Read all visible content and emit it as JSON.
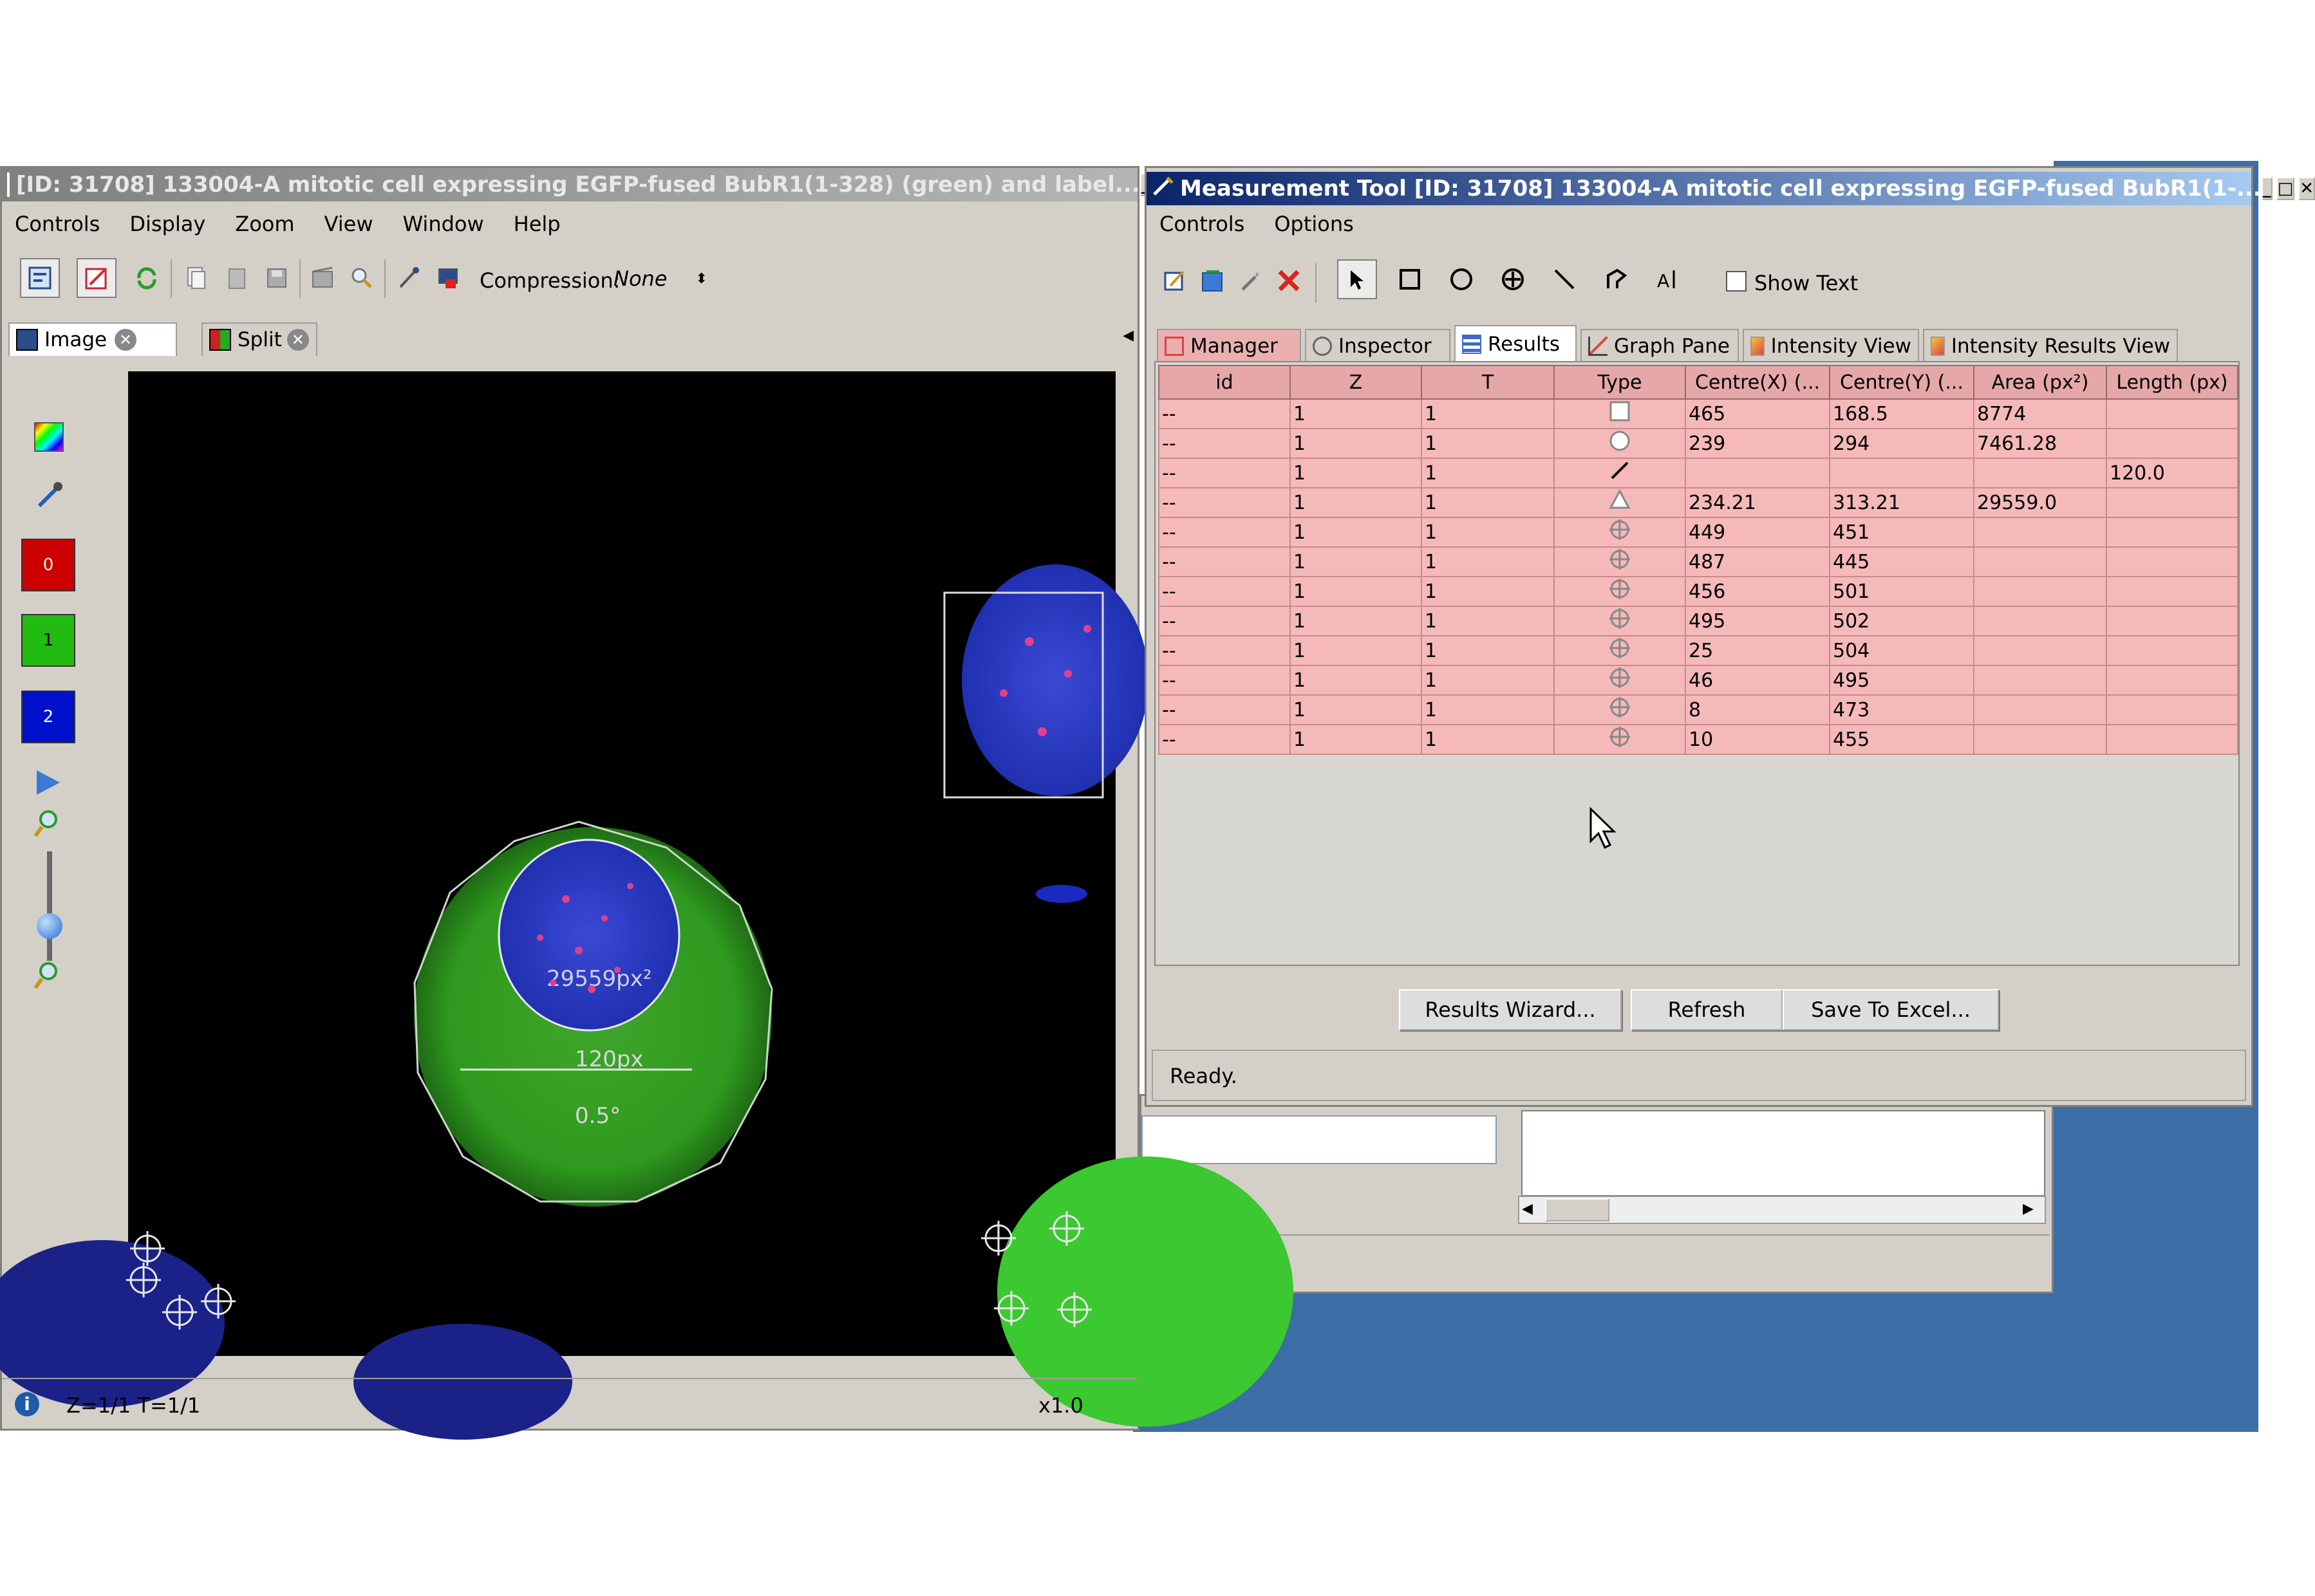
{
  "image_window": {
    "title": "[ID: 31708] 133004-A mitotic cell expressing EGFP-fused BubR1(1-328) (green) and label...",
    "menu": [
      "Controls",
      "Display",
      "Zoom",
      "View",
      "Window",
      "Help"
    ],
    "compression_label": "Compression:",
    "compression_value": "None",
    "tabs": [
      {
        "label": "Image"
      },
      {
        "label": "Split"
      }
    ],
    "channels": [
      {
        "label": "0",
        "color": "#cc0000"
      },
      {
        "label": "1",
        "color": "#22bb11"
      },
      {
        "label": "2",
        "color": "#0011cc"
      }
    ],
    "overlay": {
      "area_label": "29559px²",
      "length_label": "120px",
      "angle_label": "0.5°"
    },
    "status_text": "Z=1/1 T=1/1",
    "zoom_text": "x1.0"
  },
  "measurement_window": {
    "title": "Measurement Tool [ID: 31708] 133004-A mitotic cell expressing EGFP-fused BubR1(1-...",
    "menu": [
      "Controls",
      "Options"
    ],
    "show_text_label": "Show Text",
    "tabs": [
      {
        "label": "Manager"
      },
      {
        "label": "Inspector"
      },
      {
        "label": "Results"
      },
      {
        "label": "Graph Pane"
      },
      {
        "label": "Intensity View"
      },
      {
        "label": "Intensity Results View"
      }
    ],
    "table": {
      "columns": [
        "id",
        "Z",
        "T",
        "Type",
        "Centre(X) (...",
        "Centre(Y) (...",
        "Area (px²)",
        "Length (px)"
      ],
      "rows": [
        {
          "id": "--",
          "z": "1",
          "t": "1",
          "type": "rectangle-icon",
          "cx": "465",
          "cy": "168.5",
          "area": "8774",
          "length": ""
        },
        {
          "id": "--",
          "z": "1",
          "t": "1",
          "type": "ellipse-icon",
          "cx": "239",
          "cy": "294",
          "area": "7461.28",
          "length": ""
        },
        {
          "id": "--",
          "z": "1",
          "t": "1",
          "type": "line-icon",
          "cx": "",
          "cy": "",
          "area": "",
          "length": "120.0"
        },
        {
          "id": "--",
          "z": "1",
          "t": "1",
          "type": "polygon-icon",
          "cx": "234.21",
          "cy": "313.21",
          "area": "29559.0",
          "length": ""
        },
        {
          "id": "--",
          "z": "1",
          "t": "1",
          "type": "point-icon",
          "cx": "449",
          "cy": "451",
          "area": "",
          "length": ""
        },
        {
          "id": "--",
          "z": "1",
          "t": "1",
          "type": "point-icon",
          "cx": "487",
          "cy": "445",
          "area": "",
          "length": ""
        },
        {
          "id": "--",
          "z": "1",
          "t": "1",
          "type": "point-icon",
          "cx": "456",
          "cy": "501",
          "area": "",
          "length": ""
        },
        {
          "id": "--",
          "z": "1",
          "t": "1",
          "type": "point-icon",
          "cx": "495",
          "cy": "502",
          "area": "",
          "length": ""
        },
        {
          "id": "--",
          "z": "1",
          "t": "1",
          "type": "point-icon",
          "cx": "25",
          "cy": "504",
          "area": "",
          "length": ""
        },
        {
          "id": "--",
          "z": "1",
          "t": "1",
          "type": "point-icon",
          "cx": "46",
          "cy": "495",
          "area": "",
          "length": ""
        },
        {
          "id": "--",
          "z": "1",
          "t": "1",
          "type": "point-icon",
          "cx": "8",
          "cy": "473",
          "area": "",
          "length": ""
        },
        {
          "id": "--",
          "z": "1",
          "t": "1",
          "type": "point-icon",
          "cx": "10",
          "cy": "455",
          "area": "",
          "length": ""
        }
      ]
    },
    "buttons": {
      "wizard": "Results Wizard...",
      "refresh": "Refresh",
      "save": "Save To Excel..."
    },
    "status_text": "Ready."
  }
}
